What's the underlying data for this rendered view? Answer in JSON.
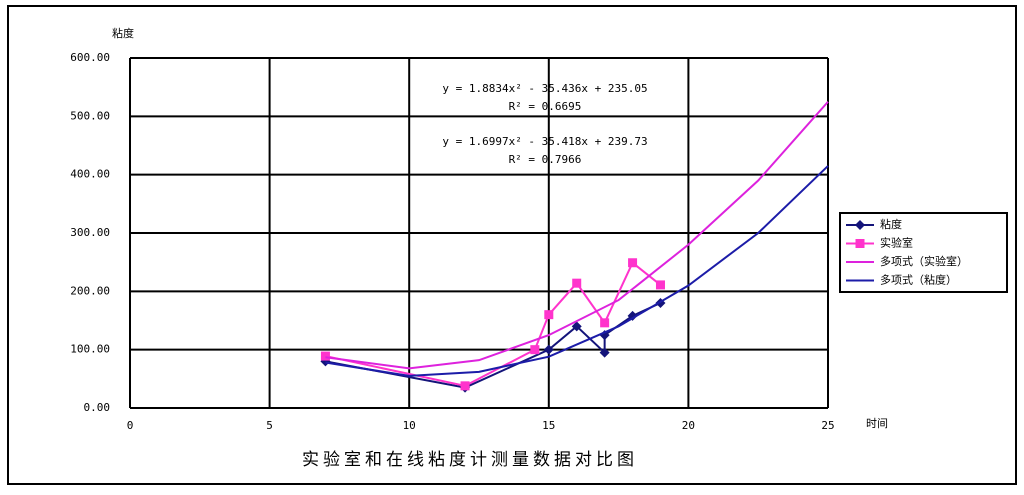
{
  "chart_data": {
    "type": "line",
    "title": "实验室和在线粘度计测量数据对比图",
    "y_label": "粘度",
    "x_label": "时间",
    "xlim": [
      0,
      25
    ],
    "xticks": [
      0,
      5,
      10,
      15,
      20,
      25
    ],
    "ylim": [
      0,
      600
    ],
    "yticks": [
      {
        "value": 0,
        "label": "0.00"
      },
      {
        "value": 100,
        "label": "100.00"
      },
      {
        "value": 200,
        "label": "200.00"
      },
      {
        "value": 300,
        "label": "300.00"
      },
      {
        "value": 400,
        "label": "400.00"
      },
      {
        "value": 500,
        "label": "500.00"
      },
      {
        "value": 600,
        "label": "600.00"
      }
    ],
    "grid": true,
    "legend": "right",
    "series": [
      {
        "name": "粘度",
        "color": "#14147a",
        "marker": "diamond",
        "x": [
          7,
          12,
          15,
          16,
          17,
          17,
          18,
          19
        ],
        "values": [
          80,
          35,
          100,
          140,
          95,
          125,
          158,
          180
        ]
      },
      {
        "name": "实验室",
        "color": "#ff33cc",
        "marker": "square",
        "x": [
          7,
          12,
          14.5,
          15,
          16,
          17,
          18,
          19
        ],
        "values": [
          89,
          38,
          100,
          160,
          214,
          146,
          249,
          211
        ]
      },
      {
        "name": "多项式（实验室）",
        "color": "#dd22dd",
        "x": [
          7,
          10,
          12.5,
          15,
          17.5,
          20,
          22.5,
          25
        ],
        "values": [
          87,
          68,
          82,
          125,
          185,
          280,
          390,
          525
        ]
      },
      {
        "name": "多项式（粘度）",
        "color": "#1c1ca8",
        "x": [
          7,
          10,
          12.5,
          15,
          17.5,
          20,
          22.5,
          25
        ],
        "values": [
          78,
          55,
          62,
          88,
          140,
          210,
          300,
          415
        ]
      }
    ],
    "annotations": [
      {
        "text": "y = 1.8834x² - 35.436x + 235.05",
        "color": "#dd22dd"
      },
      {
        "text": "R² = 0.6695",
        "color": "#dd22dd"
      },
      {
        "text": "y = 1.6997x² - 35.418x + 239.73",
        "color": "#1c1ca8"
      },
      {
        "text": "R² = 0.7966",
        "color": "#1c1ca8"
      }
    ]
  }
}
